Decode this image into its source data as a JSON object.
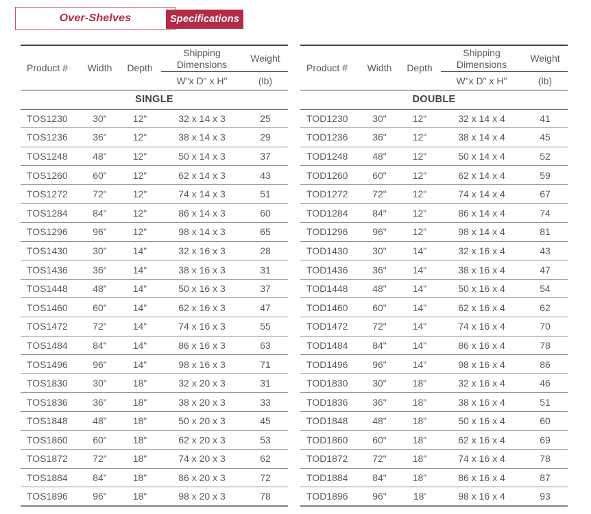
{
  "header": {
    "category_label": "Over-Shelves",
    "specifications_label": "Specifications"
  },
  "colors": {
    "accent": "#b22c46",
    "text_gray": "#58595b",
    "dark_line": "#414042",
    "row_line": "#8a8c8f",
    "bottom_line": "#9b9da0"
  },
  "columns": {
    "product": "Product #",
    "width": "Width",
    "depth": "Depth",
    "shipping_line1": "Shipping",
    "shipping_line2": "Dimensions",
    "shipping_sub": "W\"x D\" x H\"",
    "weight": "Weight",
    "weight_sub": "(lb)"
  },
  "tables": [
    {
      "section": "SINGLE",
      "rows": [
        [
          "TOS1230",
          "30\"",
          "12\"",
          "32 x 14 x 3",
          "25"
        ],
        [
          "TOS1236",
          "36\"",
          "12\"",
          "38 x 14 x 3",
          "29"
        ],
        [
          "TOS1248",
          "48\"",
          "12\"",
          "50 x 14 x 3",
          "37"
        ],
        [
          "TOS1260",
          "60\"",
          "12\"",
          "62 x 14 x 3",
          "43"
        ],
        [
          "TOS1272",
          "72\"",
          "12\"",
          "74 x 14 x 3",
          "51"
        ],
        [
          "TOS1284",
          "84\"",
          "12\"",
          "86 x 14 x 3",
          "60"
        ],
        [
          "TOS1296",
          "96\"",
          "12\"",
          "98 x 14 x 3",
          "65"
        ],
        [
          "TOS1430",
          "30\"",
          "14\"",
          "32 x 16 x 3",
          "28"
        ],
        [
          "TOS1436",
          "36\"",
          "14\"",
          "38 x 16 x 3",
          "31"
        ],
        [
          "TOS1448",
          "48\"",
          "14\"",
          "50 x 16 x 3",
          "37"
        ],
        [
          "TOS1460",
          "60\"",
          "14\"",
          "62 x 16 x 3",
          "47"
        ],
        [
          "TOS1472",
          "72\"",
          "14\"",
          "74 x 16 x 3",
          "55"
        ],
        [
          "TOS1484",
          "84\"",
          "14\"",
          "86 x 16 x 3",
          "63"
        ],
        [
          "TOS1496",
          "96\"",
          "14\"",
          "98 x 16 x 3",
          "71"
        ],
        [
          "TOS1830",
          "30\"",
          "18\"",
          "32 x 20 x 3",
          "31"
        ],
        [
          "TOS1836",
          "36\"",
          "18\"",
          "38 x 20 x 3",
          "33"
        ],
        [
          "TOS1848",
          "48\"",
          "18\"",
          "50 x 20 x 3",
          "45"
        ],
        [
          "TOS1860",
          "60\"",
          "18\"",
          "62 x 20 x 3",
          "53"
        ],
        [
          "TOS1872",
          "72\"",
          "18\"",
          "74 x 20 x 3",
          "62"
        ],
        [
          "TOS1884",
          "84\"",
          "18\"",
          "86 x 20 x 3",
          "72"
        ],
        [
          "TOS1896",
          "96\"",
          "18\"",
          "98 x 20 x 3",
          "78"
        ]
      ]
    },
    {
      "section": "DOUBLE",
      "rows": [
        [
          "TOD1230",
          "30\"",
          "12\"",
          "32 x 14 x 4",
          "41"
        ],
        [
          "TOD1236",
          "36\"",
          "12\"",
          "38 x 14 x 4",
          "45"
        ],
        [
          "TOD1248",
          "48\"",
          "12\"",
          "50 x 14 x 4",
          "52"
        ],
        [
          "TOD1260",
          "60\"",
          "12\"",
          "62 x 14 x 4",
          "59"
        ],
        [
          "TOD1272",
          "72\"",
          "12\"",
          "74 x 14 x 4",
          "67"
        ],
        [
          "TOD1284",
          "84\"",
          "12\"",
          "86 x 14 x 4",
          "74"
        ],
        [
          "TOD1296",
          "96\"",
          "12\"",
          "98 x 14 x 4",
          "81"
        ],
        [
          "TOD1430",
          "30\"",
          "14\"",
          "32 x 16 x 4",
          "43"
        ],
        [
          "TOD1436",
          "36\"",
          "14\"",
          "38 x 16 x 4",
          "47"
        ],
        [
          "TOD1448",
          "48\"",
          "14\"",
          "50 x 16 x 4",
          "54"
        ],
        [
          "TOD1460",
          "60\"",
          "14\"",
          "62 x 16 x 4",
          "62"
        ],
        [
          "TOD1472",
          "72\"",
          "14\"",
          "74 x 16 x 4",
          "70"
        ],
        [
          "TOD1484",
          "84\"",
          "14\"",
          "86 x 16 x 4",
          "78"
        ],
        [
          "TOD1496",
          "96\"",
          "14\"",
          "98 x 16 x 4",
          "86"
        ],
        [
          "TOD1830",
          "30\"",
          "18\"",
          "32 x 16 x 4",
          "46"
        ],
        [
          "TOD1836",
          "36\"",
          "18\"",
          "38 x 16 x 4",
          "51"
        ],
        [
          "TOD1848",
          "48\"",
          "18\"",
          "50 x 16 x 4",
          "60"
        ],
        [
          "TOD1860",
          "60\"",
          "18\"",
          "62 x 16 x 4",
          "69"
        ],
        [
          "TOD1872",
          "72\"",
          "18\"",
          "74 x 16 x 4",
          "78"
        ],
        [
          "TOD1884",
          "84\"",
          "18\"",
          "86 x 16 x 4",
          "87"
        ],
        [
          "TOD1896",
          "96\"",
          "18'",
          "98 x 16 x 4",
          "93"
        ]
      ]
    }
  ]
}
